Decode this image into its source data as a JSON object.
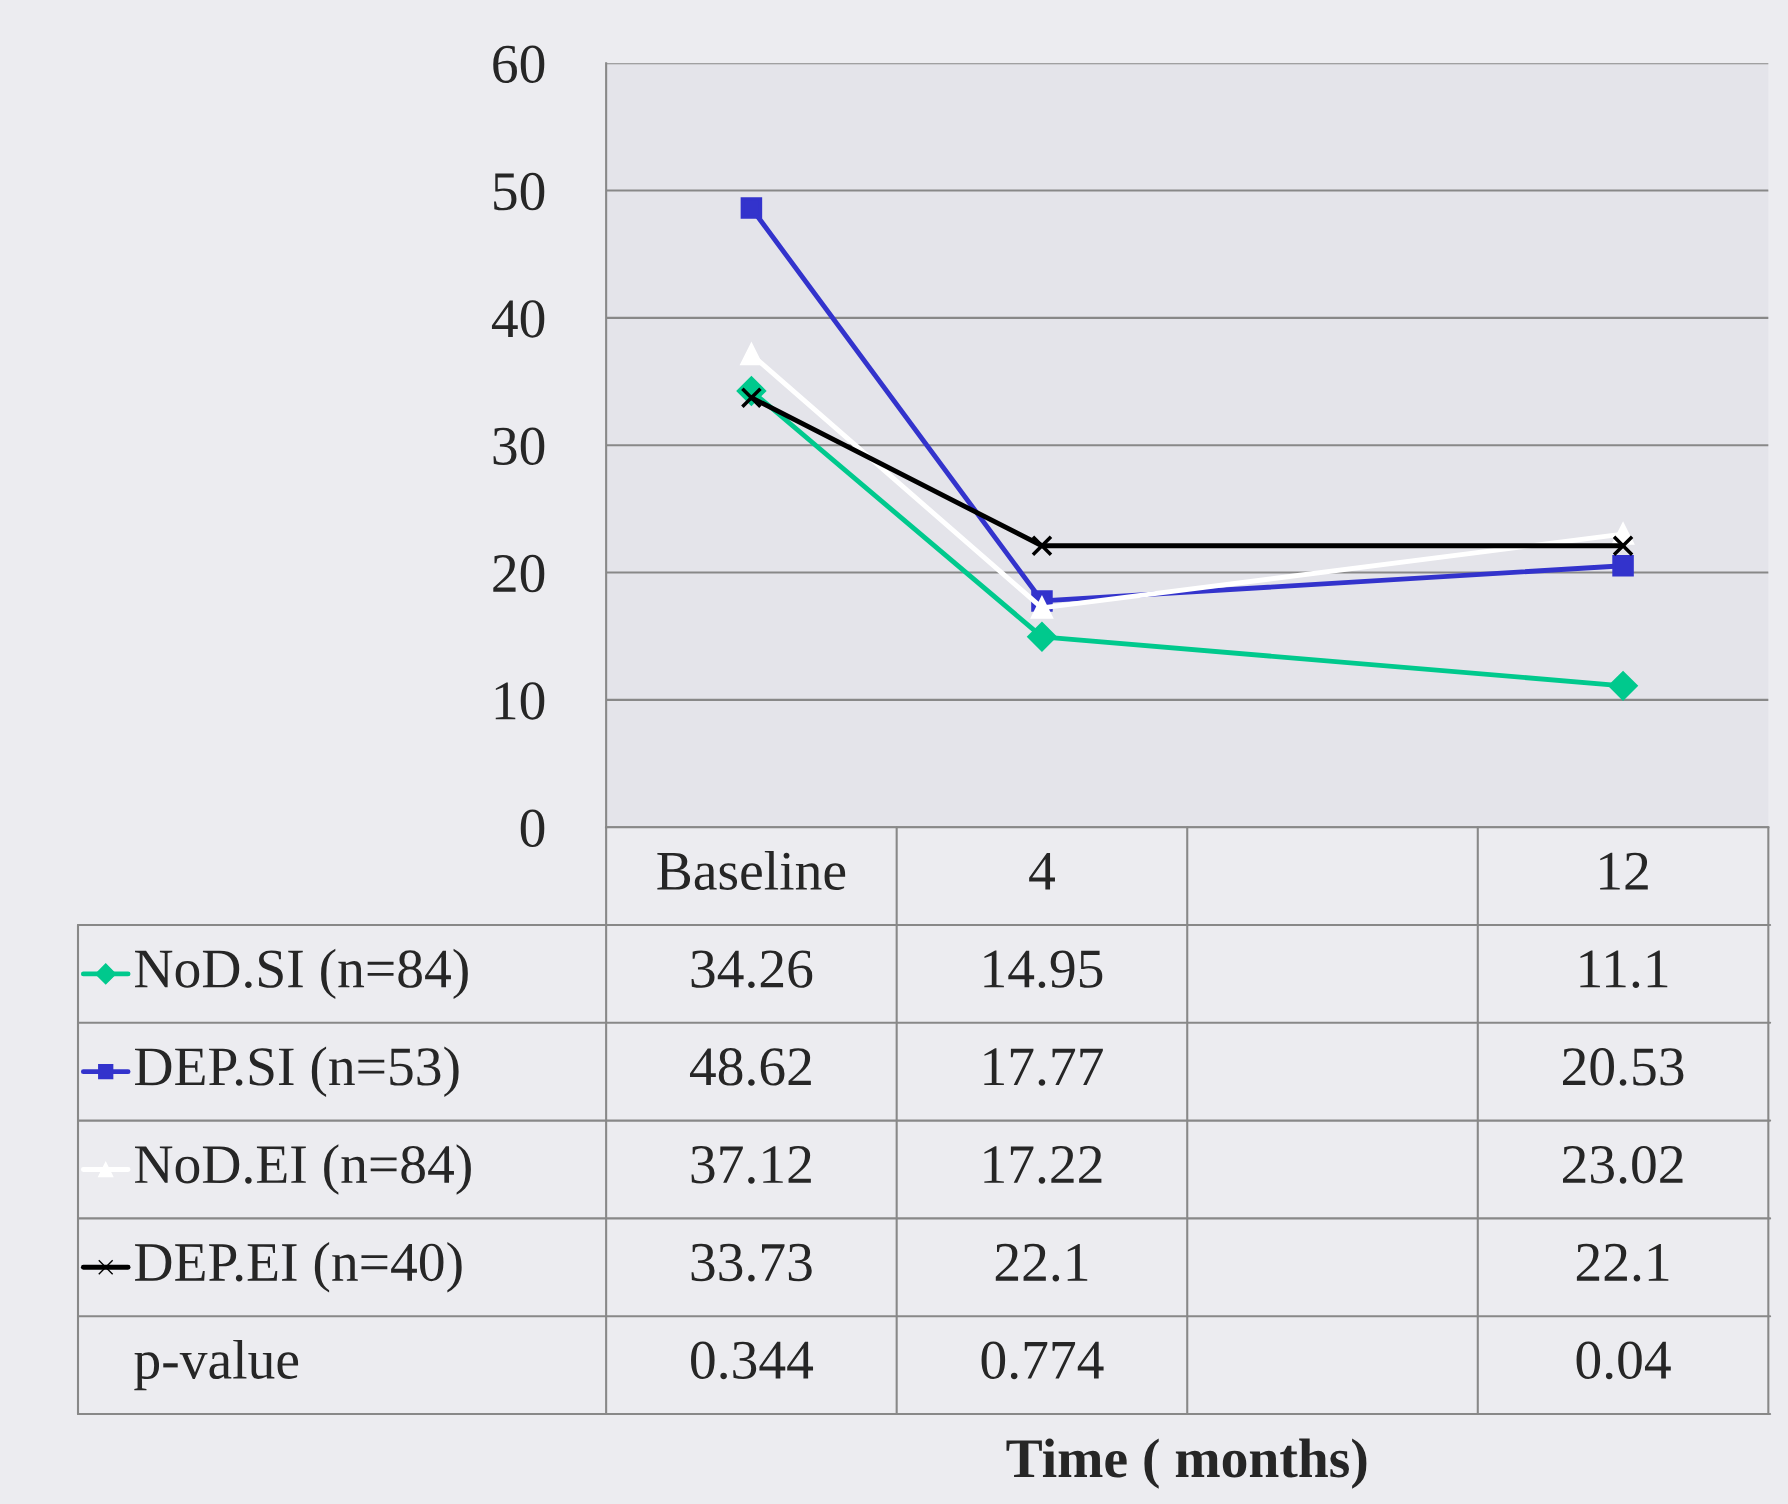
{
  "chart_data": {
    "type": "line",
    "categories": [
      "Baseline",
      "4",
      null,
      "12"
    ],
    "series": [
      {
        "name": "NoD.SI (n=84)",
        "color": "#00c98d",
        "marker": "diamond",
        "values": [
          34.26,
          14.95,
          null,
          11.1
        ]
      },
      {
        "name": "DEP.SI (n=53)",
        "color": "#3333cc",
        "marker": "square",
        "values": [
          48.62,
          17.77,
          null,
          20.53
        ]
      },
      {
        "name": "NoD.EI (n=84)",
        "color": "#ffffff",
        "marker": "triangle",
        "values": [
          37.12,
          17.22,
          null,
          23.02
        ]
      },
      {
        "name": "DEP.EI (n=40)",
        "color": "#000000",
        "marker": "cross",
        "values": [
          33.73,
          22.1,
          null,
          22.1
        ]
      }
    ],
    "annotations": [
      "p-value",
      "0.344",
      "0.774",
      "0.04",
      "Time ( months)"
    ],
    "ylim": [
      0,
      60
    ],
    "yticks": [
      0,
      10,
      20,
      30,
      40,
      50,
      60
    ],
    "grid": "y",
    "legend": "bottom left",
    "data_labels": true
  }
}
